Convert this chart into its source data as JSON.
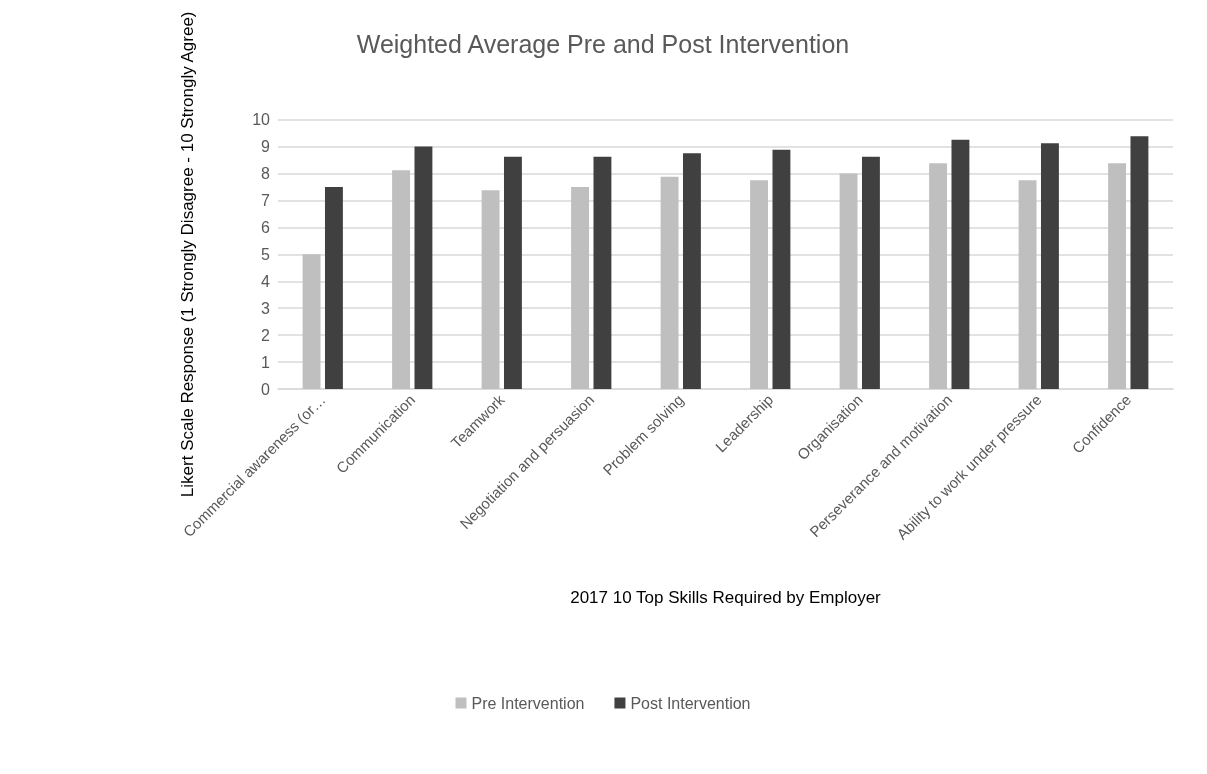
{
  "chart_data": {
    "type": "bar",
    "title": "Weighted Average Pre and Post Intervention",
    "xlabel": "2017 10 Top Skills Required by Employer",
    "ylabel": "Likert Scale Response (1 Strongly Disagree - 10 Strongly Agree)",
    "categories": [
      "Commercial awareness (or…",
      "Communication",
      "Teamwork",
      "Negotiation and persuasion",
      "Problem solving",
      "Leadership",
      "Organisation",
      "Perseverance and motivation",
      "Ability to work under pressure",
      "Confidence"
    ],
    "series": [
      {
        "name": "Pre Intervention",
        "color": "#bfbfbf",
        "values": [
          5,
          8.12,
          7.38,
          7.5,
          7.88,
          7.75,
          8,
          8.38,
          7.75,
          8.38
        ]
      },
      {
        "name": "Post Intervention",
        "color": "#404040",
        "values": [
          7.5,
          9,
          8.62,
          8.62,
          8.75,
          8.88,
          8.62,
          9.25,
          9.12,
          9.38
        ]
      }
    ],
    "ylim": [
      0,
      10
    ],
    "yticks": [
      0,
      1,
      2,
      3,
      4,
      5,
      6,
      7,
      8,
      9,
      10
    ],
    "grid": "y",
    "legend": "bottom"
  }
}
